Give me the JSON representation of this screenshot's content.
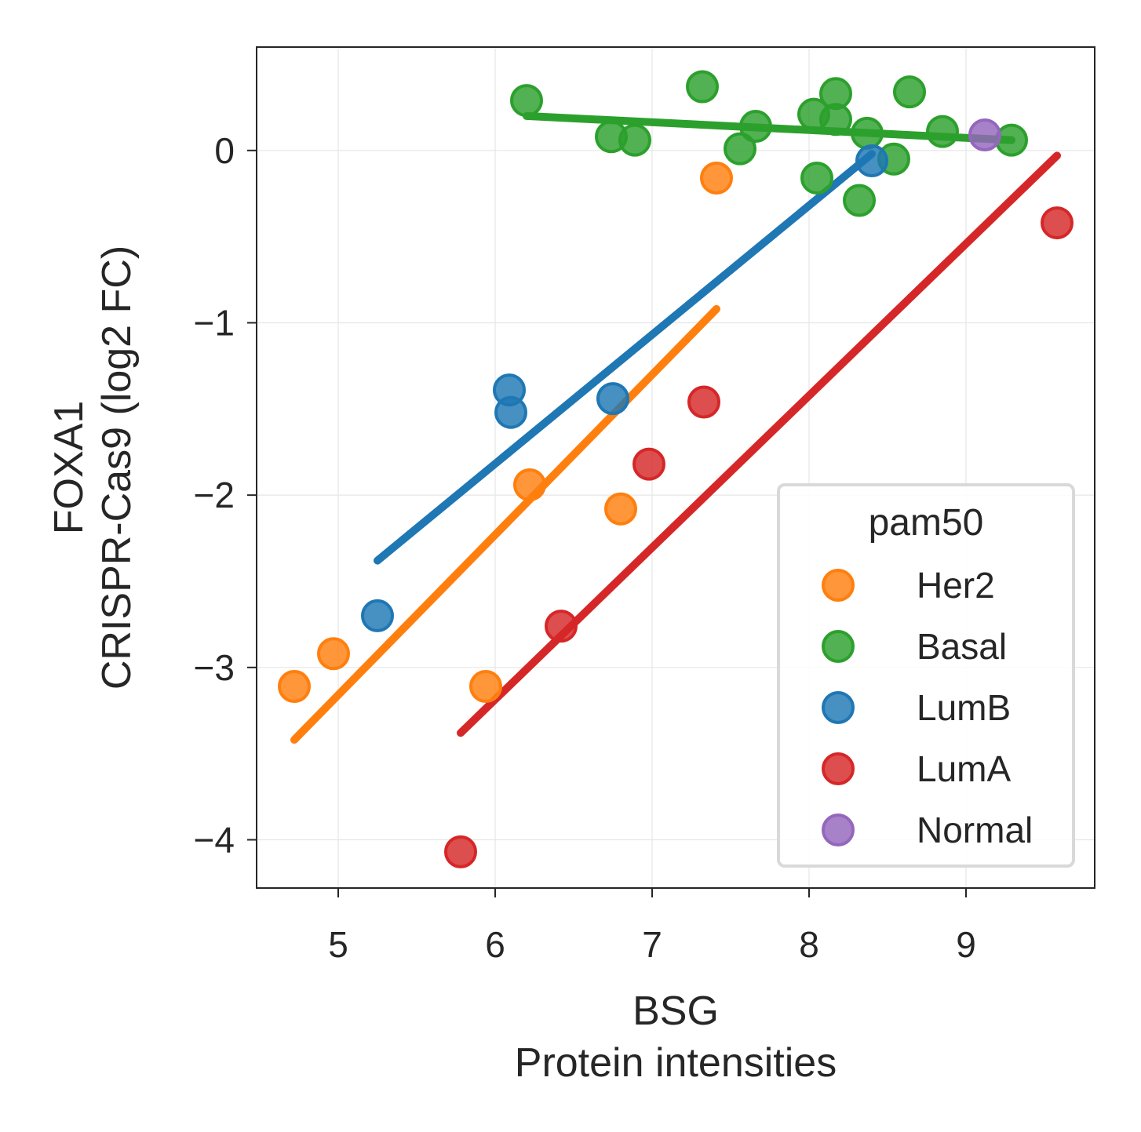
{
  "chart_data": {
    "type": "scatter",
    "xlabel_line1": "BSG",
    "xlabel_line2": "Protein intensities",
    "ylabel_line1": "FOXA1",
    "ylabel_line2": "CRISPR-Cas9 (log2 FC)",
    "xlim": [
      4.48,
      9.82
    ],
    "ylim": [
      -4.28,
      0.6
    ],
    "xticks": [
      5,
      6,
      7,
      8,
      9
    ],
    "yticks": [
      0,
      -1,
      -2,
      -3,
      -4
    ],
    "xtick_labels": [
      "5",
      "6",
      "7",
      "8",
      "9"
    ],
    "ytick_labels": [
      "0",
      "−1",
      "−2",
      "−3",
      "−4"
    ],
    "grid": true,
    "legend": {
      "title": "pam50",
      "position": "lower-right",
      "entries": [
        "Her2",
        "Basal",
        "LumB",
        "LumA",
        "Normal"
      ]
    },
    "series": [
      {
        "name": "Her2",
        "color": "#ff7f0e",
        "points": [
          [
            4.72,
            -3.11
          ],
          [
            4.97,
            -2.92
          ],
          [
            5.94,
            -3.11
          ],
          [
            6.22,
            -1.94
          ],
          [
            6.8,
            -2.08
          ],
          [
            7.41,
            -0.16
          ]
        ],
        "fit": [
          [
            4.72,
            -3.42
          ],
          [
            7.41,
            -0.92
          ]
        ]
      },
      {
        "name": "Basal",
        "color": "#2ca02c",
        "points": [
          [
            6.2,
            0.29
          ],
          [
            6.74,
            0.08
          ],
          [
            6.89,
            0.06
          ],
          [
            7.32,
            0.37
          ],
          [
            7.56,
            0.01
          ],
          [
            7.66,
            0.14
          ],
          [
            8.03,
            0.21
          ],
          [
            8.05,
            -0.16
          ],
          [
            8.17,
            0.33
          ],
          [
            8.17,
            0.18
          ],
          [
            8.32,
            -0.29
          ],
          [
            8.37,
            0.1
          ],
          [
            8.54,
            -0.05
          ],
          [
            8.64,
            0.34
          ],
          [
            8.85,
            0.11
          ],
          [
            9.29,
            0.06
          ]
        ],
        "fit": [
          [
            6.2,
            0.2
          ],
          [
            9.29,
            0.06
          ]
        ]
      },
      {
        "name": "LumB",
        "color": "#1f77b4",
        "points": [
          [
            5.25,
            -2.7
          ],
          [
            6.09,
            -1.39
          ],
          [
            6.1,
            -1.52
          ],
          [
            6.75,
            -1.44
          ],
          [
            8.4,
            -0.06
          ]
        ],
        "fit": [
          [
            5.25,
            -2.38
          ],
          [
            8.4,
            -0.02
          ]
        ]
      },
      {
        "name": "LumA",
        "color": "#d62728",
        "points": [
          [
            5.78,
            -4.07
          ],
          [
            6.42,
            -2.76
          ],
          [
            6.98,
            -1.82
          ],
          [
            7.33,
            -1.46
          ],
          [
            9.58,
            -0.42
          ]
        ],
        "fit": [
          [
            5.78,
            -3.38
          ],
          [
            9.58,
            -0.03
          ]
        ]
      },
      {
        "name": "Normal",
        "color": "#9467bd",
        "points": [
          [
            9.12,
            0.09
          ]
        ],
        "fit": []
      }
    ]
  }
}
